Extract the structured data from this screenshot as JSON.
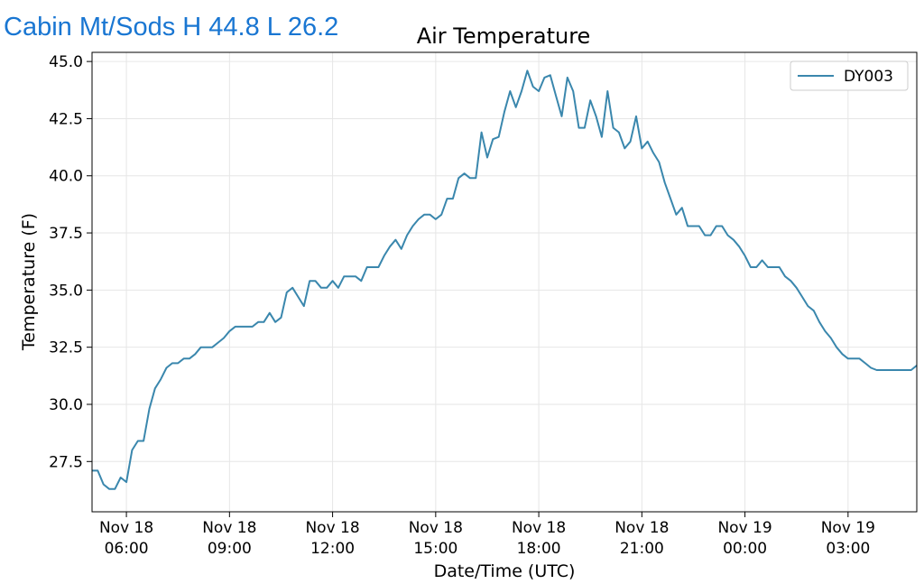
{
  "station_header": {
    "text": "Cabin Mt/Sods H 44.8 L 26.2"
  },
  "chart_data": {
    "type": "line",
    "title": "Air Temperature",
    "xlabel": "Date/Time (UTC)",
    "ylabel": "Temperature (F)",
    "ylim": [
      25.3,
      45.4
    ],
    "xlim": [
      "2023-11-18T05:00",
      "2023-11-19T05:00"
    ],
    "grid": true,
    "legend_position": "top-right",
    "y_ticks": [
      27.5,
      30.0,
      32.5,
      35.0,
      37.5,
      40.0,
      42.5,
      45.0
    ],
    "y_tick_labels": [
      "27.5",
      "30.0",
      "32.5",
      "35.0",
      "37.5",
      "40.0",
      "42.5",
      "45.0"
    ],
    "x_ticks": [
      "2023-11-18T06:00",
      "2023-11-18T09:00",
      "2023-11-18T12:00",
      "2023-11-18T15:00",
      "2023-11-18T18:00",
      "2023-11-18T21:00",
      "2023-11-19T00:00",
      "2023-11-19T03:00"
    ],
    "x_tick_labels": [
      [
        "Nov 18",
        "06:00"
      ],
      [
        "Nov 18",
        "09:00"
      ],
      [
        "Nov 18",
        "12:00"
      ],
      [
        "Nov 18",
        "15:00"
      ],
      [
        "Nov 18",
        "18:00"
      ],
      [
        "Nov 18",
        "21:00"
      ],
      [
        "Nov 19",
        "00:00"
      ],
      [
        "Nov 19",
        "03:00"
      ]
    ],
    "colors": {
      "series": "#3a87ad"
    },
    "series": [
      {
        "name": "DY003",
        "points": [
          [
            "2023-11-18T05:00",
            27.1
          ],
          [
            "2023-11-18T05:10",
            27.1
          ],
          [
            "2023-11-18T05:20",
            26.5
          ],
          [
            "2023-11-18T05:30",
            26.3
          ],
          [
            "2023-11-18T05:40",
            26.3
          ],
          [
            "2023-11-18T05:50",
            26.8
          ],
          [
            "2023-11-18T06:00",
            26.6
          ],
          [
            "2023-11-18T06:10",
            28.0
          ],
          [
            "2023-11-18T06:20",
            28.4
          ],
          [
            "2023-11-18T06:30",
            28.4
          ],
          [
            "2023-11-18T06:40",
            29.8
          ],
          [
            "2023-11-18T06:50",
            30.7
          ],
          [
            "2023-11-18T07:00",
            31.1
          ],
          [
            "2023-11-18T07:10",
            31.6
          ],
          [
            "2023-11-18T07:20",
            31.8
          ],
          [
            "2023-11-18T07:30",
            31.8
          ],
          [
            "2023-11-18T07:40",
            32.0
          ],
          [
            "2023-11-18T07:50",
            32.0
          ],
          [
            "2023-11-18T08:00",
            32.2
          ],
          [
            "2023-11-18T08:10",
            32.5
          ],
          [
            "2023-11-18T08:20",
            32.5
          ],
          [
            "2023-11-18T08:30",
            32.5
          ],
          [
            "2023-11-18T08:40",
            32.7
          ],
          [
            "2023-11-18T08:50",
            32.9
          ],
          [
            "2023-11-18T09:00",
            33.2
          ],
          [
            "2023-11-18T09:10",
            33.4
          ],
          [
            "2023-11-18T09:20",
            33.4
          ],
          [
            "2023-11-18T09:30",
            33.4
          ],
          [
            "2023-11-18T09:40",
            33.4
          ],
          [
            "2023-11-18T09:50",
            33.6
          ],
          [
            "2023-11-18T10:00",
            33.6
          ],
          [
            "2023-11-18T10:10",
            34.0
          ],
          [
            "2023-11-18T10:20",
            33.6
          ],
          [
            "2023-11-18T10:30",
            33.8
          ],
          [
            "2023-11-18T10:40",
            34.9
          ],
          [
            "2023-11-18T10:50",
            35.1
          ],
          [
            "2023-11-18T11:00",
            34.7
          ],
          [
            "2023-11-18T11:10",
            34.3
          ],
          [
            "2023-11-18T11:20",
            35.4
          ],
          [
            "2023-11-18T11:30",
            35.4
          ],
          [
            "2023-11-18T11:40",
            35.1
          ],
          [
            "2023-11-18T11:50",
            35.1
          ],
          [
            "2023-11-18T12:00",
            35.4
          ],
          [
            "2023-11-18T12:10",
            35.1
          ],
          [
            "2023-11-18T12:20",
            35.6
          ],
          [
            "2023-11-18T12:30",
            35.6
          ],
          [
            "2023-11-18T12:40",
            35.6
          ],
          [
            "2023-11-18T12:50",
            35.4
          ],
          [
            "2023-11-18T13:00",
            36.0
          ],
          [
            "2023-11-18T13:10",
            36.0
          ],
          [
            "2023-11-18T13:20",
            36.0
          ],
          [
            "2023-11-18T13:30",
            36.5
          ],
          [
            "2023-11-18T13:40",
            36.9
          ],
          [
            "2023-11-18T13:50",
            37.2
          ],
          [
            "2023-11-18T14:00",
            36.8
          ],
          [
            "2023-11-18T14:10",
            37.4
          ],
          [
            "2023-11-18T14:20",
            37.8
          ],
          [
            "2023-11-18T14:30",
            38.1
          ],
          [
            "2023-11-18T14:40",
            38.3
          ],
          [
            "2023-11-18T14:50",
            38.3
          ],
          [
            "2023-11-18T15:00",
            38.1
          ],
          [
            "2023-11-18T15:10",
            38.3
          ],
          [
            "2023-11-18T15:20",
            39.0
          ],
          [
            "2023-11-18T15:30",
            39.0
          ],
          [
            "2023-11-18T15:40",
            39.9
          ],
          [
            "2023-11-18T15:50",
            40.1
          ],
          [
            "2023-11-18T16:00",
            39.9
          ],
          [
            "2023-11-18T16:10",
            39.9
          ],
          [
            "2023-11-18T16:20",
            41.9
          ],
          [
            "2023-11-18T16:30",
            40.8
          ],
          [
            "2023-11-18T16:40",
            41.6
          ],
          [
            "2023-11-18T16:50",
            41.7
          ],
          [
            "2023-11-18T17:00",
            42.8
          ],
          [
            "2023-11-18T17:10",
            43.7
          ],
          [
            "2023-11-18T17:20",
            43.0
          ],
          [
            "2023-11-18T17:30",
            43.7
          ],
          [
            "2023-11-18T17:40",
            44.6
          ],
          [
            "2023-11-18T17:50",
            43.9
          ],
          [
            "2023-11-18T18:00",
            43.7
          ],
          [
            "2023-11-18T18:10",
            44.3
          ],
          [
            "2023-11-18T18:20",
            44.4
          ],
          [
            "2023-11-18T18:30",
            43.5
          ],
          [
            "2023-11-18T18:40",
            42.6
          ],
          [
            "2023-11-18T18:50",
            44.3
          ],
          [
            "2023-11-18T19:00",
            43.7
          ],
          [
            "2023-11-18T19:10",
            42.1
          ],
          [
            "2023-11-18T19:20",
            42.1
          ],
          [
            "2023-11-18T19:30",
            43.3
          ],
          [
            "2023-11-18T19:40",
            42.6
          ],
          [
            "2023-11-18T19:50",
            41.7
          ],
          [
            "2023-11-18T20:00",
            43.7
          ],
          [
            "2023-11-18T20:10",
            42.1
          ],
          [
            "2023-11-18T20:20",
            41.9
          ],
          [
            "2023-11-18T20:30",
            41.2
          ],
          [
            "2023-11-18T20:40",
            41.5
          ],
          [
            "2023-11-18T20:50",
            42.6
          ],
          [
            "2023-11-18T21:00",
            41.2
          ],
          [
            "2023-11-18T21:10",
            41.5
          ],
          [
            "2023-11-18T21:20",
            41.0
          ],
          [
            "2023-11-18T21:30",
            40.6
          ],
          [
            "2023-11-18T21:40",
            39.7
          ],
          [
            "2023-11-18T21:50",
            39.0
          ],
          [
            "2023-11-18T22:00",
            38.3
          ],
          [
            "2023-11-18T22:10",
            38.6
          ],
          [
            "2023-11-18T22:20",
            37.8
          ],
          [
            "2023-11-18T22:30",
            37.8
          ],
          [
            "2023-11-18T22:40",
            37.8
          ],
          [
            "2023-11-18T22:50",
            37.4
          ],
          [
            "2023-11-18T23:00",
            37.4
          ],
          [
            "2023-11-18T23:10",
            37.8
          ],
          [
            "2023-11-18T23:20",
            37.8
          ],
          [
            "2023-11-18T23:30",
            37.4
          ],
          [
            "2023-11-18T23:40",
            37.2
          ],
          [
            "2023-11-18T23:50",
            36.9
          ],
          [
            "2023-11-19T00:00",
            36.5
          ],
          [
            "2023-11-19T00:10",
            36.0
          ],
          [
            "2023-11-19T00:20",
            36.0
          ],
          [
            "2023-11-19T00:30",
            36.3
          ],
          [
            "2023-11-19T00:40",
            36.0
          ],
          [
            "2023-11-19T00:50",
            36.0
          ],
          [
            "2023-11-19T01:00",
            36.0
          ],
          [
            "2023-11-19T01:10",
            35.6
          ],
          [
            "2023-11-19T01:20",
            35.4
          ],
          [
            "2023-11-19T01:30",
            35.1
          ],
          [
            "2023-11-19T01:40",
            34.7
          ],
          [
            "2023-11-19T01:50",
            34.3
          ],
          [
            "2023-11-19T02:00",
            34.1
          ],
          [
            "2023-11-19T02:10",
            33.6
          ],
          [
            "2023-11-19T02:20",
            33.2
          ],
          [
            "2023-11-19T02:30",
            32.9
          ],
          [
            "2023-11-19T02:40",
            32.5
          ],
          [
            "2023-11-19T02:50",
            32.2
          ],
          [
            "2023-11-19T03:00",
            32.0
          ],
          [
            "2023-11-19T03:10",
            32.0
          ],
          [
            "2023-11-19T03:20",
            32.0
          ],
          [
            "2023-11-19T03:30",
            31.8
          ],
          [
            "2023-11-19T03:40",
            31.6
          ],
          [
            "2023-11-19T03:50",
            31.5
          ],
          [
            "2023-11-19T04:00",
            31.5
          ],
          [
            "2023-11-19T04:10",
            31.5
          ],
          [
            "2023-11-19T04:20",
            31.5
          ],
          [
            "2023-11-19T04:30",
            31.5
          ],
          [
            "2023-11-19T04:40",
            31.5
          ],
          [
            "2023-11-19T04:50",
            31.5
          ],
          [
            "2023-11-19T05:00",
            31.7
          ]
        ]
      }
    ]
  }
}
